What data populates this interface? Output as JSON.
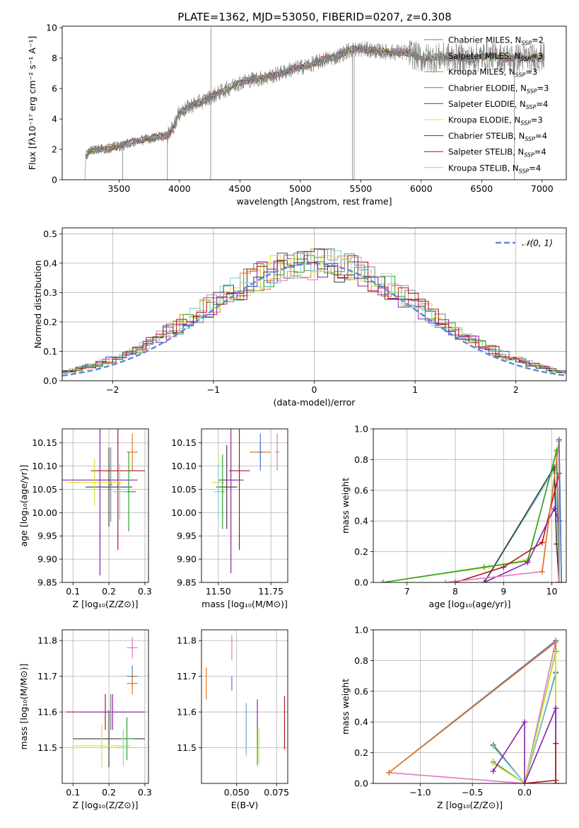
{
  "figure": {
    "title": "PLATE=1362, MJD=53050, FIBERID=0207, z=0.308"
  },
  "colors": {
    "chabrier_miles": "#7f7f7f",
    "salpeter_miles": "#e377c2",
    "kroupa_miles": "#e6771c",
    "chabrier_elodie": "#2ca02c",
    "salpeter_elodie": "#8b1fa9",
    "kroupa_elodie": "#d6e33a",
    "chabrier_stelib": "#3a3a3a",
    "salpeter_stelib": "#b0141c",
    "kroupa_stelib": "#7fd3d9",
    "normal": "#5b8bd6",
    "blue": "#4a7bd0",
    "orange": "#e6771c",
    "grid": "#b0b0b0"
  },
  "legend_spectrum": [
    {
      "label": "Chabrier MILES, N",
      "sub": "SSP",
      "suffix": "=2",
      "color": "#7f7f7f"
    },
    {
      "label": "Salpeter MILES, N",
      "sub": "SSP",
      "suffix": "=3",
      "color": "#e377c2"
    },
    {
      "label": "Kroupa MILES, N",
      "sub": "SSP",
      "suffix": "=3",
      "color": "#e6771c"
    },
    {
      "label": "Chabrier ELODIE, N",
      "sub": "SSP",
      "suffix": "=3",
      "color": "#2ca02c"
    },
    {
      "label": "Salpeter ELODIE, N",
      "sub": "SSP",
      "suffix": "=4",
      "color": "#8b1fa9"
    },
    {
      "label": "Kroupa ELODIE, N",
      "sub": "SSP",
      "suffix": "=3",
      "color": "#d6e33a"
    },
    {
      "label": "Chabrier STELIB, N",
      "sub": "SSP",
      "suffix": "=4",
      "color": "#3a3a3a"
    },
    {
      "label": "Salpeter STELIB, N",
      "sub": "SSP",
      "suffix": "=4",
      "color": "#b0141c"
    },
    {
      "label": "Kroupa STELIB, N",
      "sub": "SSP",
      "suffix": "=4",
      "color": "#7fd3d9"
    }
  ],
  "chart_data": [
    {
      "id": "spectrum",
      "type": "line",
      "xlabel": "wavelength [Angstrom, rest frame]",
      "ylabel": "Flux [fλ10⁻¹⁷ erg cm⁻² s⁻¹ A⁻¹]",
      "xlim": [
        3030,
        7200
      ],
      "ylim": [
        0,
        10.1
      ],
      "xticks": [
        3500,
        4000,
        4500,
        5000,
        5500,
        6000,
        6500,
        7000
      ],
      "yticks": [
        0,
        2,
        4,
        6,
        8,
        10
      ],
      "grid": false,
      "legend": "right",
      "data_range": [
        3220,
        7020
      ],
      "continuum_points": [
        [
          3220,
          0.0
        ],
        [
          3225,
          1.6
        ],
        [
          3260,
          1.9
        ],
        [
          3300,
          2.0
        ],
        [
          3350,
          2.0
        ],
        [
          3400,
          2.05
        ],
        [
          3450,
          2.15
        ],
        [
          3500,
          2.2
        ],
        [
          3550,
          2.3
        ],
        [
          3600,
          2.45
        ],
        [
          3650,
          2.55
        ],
        [
          3700,
          2.65
        ],
        [
          3750,
          2.7
        ],
        [
          3800,
          2.8
        ],
        [
          3850,
          2.85
        ],
        [
          3900,
          2.9
        ],
        [
          3950,
          3.5
        ],
        [
          4000,
          4.4
        ],
        [
          4100,
          4.9
        ],
        [
          4200,
          5.2
        ],
        [
          4300,
          5.6
        ],
        [
          4400,
          6.0
        ],
        [
          4500,
          6.4
        ],
        [
          4600,
          6.6
        ],
        [
          4700,
          6.7
        ],
        [
          4800,
          6.9
        ],
        [
          4900,
          7.2
        ],
        [
          5000,
          7.4
        ],
        [
          5100,
          7.6
        ],
        [
          5200,
          7.9
        ],
        [
          5300,
          8.1
        ],
        [
          5400,
          8.5
        ],
        [
          5500,
          8.6
        ],
        [
          5600,
          8.5
        ],
        [
          5700,
          8.4
        ],
        [
          5800,
          8.4
        ],
        [
          5900,
          8.35
        ],
        [
          6000,
          8.0
        ],
        [
          6100,
          8.0
        ],
        [
          6200,
          8.1
        ],
        [
          6300,
          8.0
        ],
        [
          6400,
          7.95
        ],
        [
          6500,
          8.1
        ],
        [
          6600,
          8.1
        ],
        [
          6700,
          8.0
        ],
        [
          6800,
          8.0
        ],
        [
          6900,
          8.0
        ],
        [
          7000,
          8.1
        ],
        [
          7020,
          8.1
        ]
      ],
      "spikes": [
        {
          "x": 4260,
          "y": 10.0
        },
        {
          "x": 4258,
          "y": 0.0
        },
        {
          "x": 3530,
          "y": 0.0
        },
        {
          "x": 3900,
          "y": 0.0
        },
        {
          "x": 5430,
          "y": 0.0
        },
        {
          "x": 5445,
          "y": 0.0
        },
        {
          "x": 6770,
          "y": 0.0
        }
      ]
    },
    {
      "id": "residuals",
      "type": "histogram",
      "xlabel": "(data-model)/error",
      "ylabel": "Normed distribution",
      "xlim": [
        -2.5,
        2.5
      ],
      "ylim": [
        0,
        0.52
      ],
      "xticks": [
        -2,
        -1,
        0,
        1,
        2
      ],
      "yticks": [
        0,
        0.1,
        0.2,
        0.3,
        0.4,
        0.5
      ],
      "grid": true,
      "legend": "top-right",
      "normal_label": "𝒩(0, 1)",
      "bin_width": 0.1
    },
    {
      "id": "age-vs-z",
      "type": "scatter",
      "xlabel": "Z [log₁₀(Z/Z⊙)]",
      "ylabel": "age  [log₁₀(age/yr)]",
      "xlim": [
        0.07,
        0.31
      ],
      "ylim": [
        9.85,
        10.18
      ],
      "xticks": [
        0.1,
        0.2,
        0.3
      ],
      "yticks": [
        9.85,
        9.9,
        9.95,
        10.0,
        10.05,
        10.1,
        10.15
      ],
      "grid": true,
      "points": [
        {
          "x": 0.265,
          "y": 10.13,
          "xerr": 0.015,
          "yerr": 0.04,
          "color": "#e6771c"
        },
        {
          "x": 0.175,
          "y": 10.07,
          "xerr": 0.105,
          "yerr": 0.205,
          "color": "#8b1fa9"
        },
        {
          "x": 0.225,
          "y": 10.09,
          "xerr": 0.075,
          "yerr": 0.17,
          "color": "#b0141c"
        },
        {
          "x": 0.2,
          "y": 10.055,
          "xerr": 0.065,
          "yerr": 0.085,
          "color": "#3a3a3a"
        },
        {
          "x": 0.16,
          "y": 10.065,
          "xerr": 0.075,
          "yerr": 0.05,
          "color": "#d6e33a"
        },
        {
          "x": 0.255,
          "y": 10.045,
          "xerr": 0.02,
          "yerr": 0.085,
          "color": "#2ca02c"
        },
        {
          "x": 0.23,
          "y": 10.045,
          "xerr": 0.02,
          "yerr": 0.06,
          "color": "#7fd3d9"
        },
        {
          "x": 0.205,
          "y": 10.06,
          "xerr": 0.005,
          "yerr": 0.08,
          "color": "#7f7f7f"
        }
      ]
    },
    {
      "id": "age-vs-mass",
      "type": "scatter",
      "xlabel": "mass [log₁₀(M/M⊙)]",
      "ylabel": "",
      "xlim": [
        11.42,
        11.83
      ],
      "ylim": [
        9.85,
        10.18
      ],
      "xticks": [
        11.5,
        11.75
      ],
      "yticks": [
        9.85,
        9.9,
        9.95,
        10.0,
        10.05,
        10.1,
        10.15
      ],
      "grid": true,
      "points": [
        {
          "x": 11.7,
          "y": 10.13,
          "xerr": 0.05,
          "yerr": 0.02,
          "color": "#e6771c"
        },
        {
          "x": 11.7,
          "y": 10.13,
          "xerr": 0.01,
          "yerr": 0.04,
          "color": "#4a7bd0"
        },
        {
          "x": 11.78,
          "y": 10.13,
          "xerr": 0.01,
          "yerr": 0.04,
          "color": "#e377c2"
        },
        {
          "x": 11.56,
          "y": 10.07,
          "xerr": 0.06,
          "yerr": 0.2,
          "color": "#8b1fa9"
        },
        {
          "x": 11.6,
          "y": 10.09,
          "xerr": 0.05,
          "yerr": 0.17,
          "color": "#b0141c"
        },
        {
          "x": 11.54,
          "y": 10.055,
          "xerr": 0.05,
          "yerr": 0.09,
          "color": "#3a3a3a"
        },
        {
          "x": 11.5,
          "y": 10.065,
          "xerr": 0.03,
          "yerr": 0.05,
          "color": "#d6e33a"
        },
        {
          "x": 11.52,
          "y": 10.045,
          "xerr": 0.01,
          "yerr": 0.08,
          "color": "#2ca02c"
        },
        {
          "x": 11.5,
          "y": 10.045,
          "xerr": 0.02,
          "yerr": 0.06,
          "color": "#7fd3d9"
        }
      ]
    },
    {
      "id": "weight-vs-age",
      "type": "line",
      "xlabel": "age  [log₁₀(age/yr)]",
      "ylabel": "mass weight",
      "xlim": [
        6.3,
        10.3
      ],
      "ylim": [
        0,
        1.0
      ],
      "xticks": [
        7,
        8,
        9,
        10
      ],
      "yticks": [
        0,
        0.2,
        0.4,
        0.6,
        0.8,
        1.0
      ],
      "grid": true,
      "series": [
        {
          "color": "#d6e33a",
          "x": [
            6.5,
            8.7,
            9.5,
            10.1,
            10.15
          ],
          "y": [
            0.0,
            0.1,
            0.15,
            0.85,
            0.0
          ]
        },
        {
          "color": "#7fd3d9",
          "x": [
            8.6,
            10.05,
            10.15,
            10.15
          ],
          "y": [
            0.0,
            0.73,
            0.25,
            0.0
          ]
        },
        {
          "color": "#3a3a3a",
          "x": [
            8.6,
            10.05,
            10.1,
            10.15
          ],
          "y": [
            0.0,
            0.75,
            0.25,
            0.0
          ]
        },
        {
          "color": "#2ca02c",
          "x": [
            6.5,
            8.6,
            9.5,
            10.1,
            10.15
          ],
          "y": [
            0.0,
            0.1,
            0.14,
            0.86,
            0.0
          ]
        },
        {
          "color": "#b0141c",
          "x": [
            8.0,
            9.0,
            9.8,
            10.15,
            10.15
          ],
          "y": [
            0.0,
            0.1,
            0.26,
            0.71,
            0.0
          ]
        },
        {
          "color": "#8b1fa9",
          "x": [
            8.6,
            9.5,
            10.05,
            10.15
          ],
          "y": [
            0.0,
            0.13,
            0.48,
            0.4
          ]
        },
        {
          "color": "#e377c2",
          "x": [
            7.8,
            9.8,
            10.15,
            10.15
          ],
          "y": [
            0.0,
            0.07,
            0.93,
            0.0
          ]
        },
        {
          "color": "#e6771c",
          "x": [
            9.8,
            10.15,
            10.2
          ],
          "y": [
            0.07,
            0.92,
            0.0
          ]
        },
        {
          "color": "#4a7bd0",
          "x": [
            10.15,
            10.2
          ],
          "y": [
            0.93,
            0.0
          ]
        }
      ]
    },
    {
      "id": "mass-vs-z",
      "type": "scatter",
      "xlabel": "Z [log₁₀(Z/Z⊙)]",
      "ylabel": "mass [log₁₀(M/M⊙)]",
      "xlim": [
        0.07,
        0.31
      ],
      "ylim": [
        11.4,
        11.83
      ],
      "xticks": [
        0.1,
        0.2,
        0.3
      ],
      "yticks": [
        11.5,
        11.6,
        11.7,
        11.8
      ],
      "grid": true,
      "points": [
        {
          "x": 0.265,
          "y": 11.78,
          "xerr": 0.015,
          "yerr": 0.03,
          "color": "#e377c2"
        },
        {
          "x": 0.265,
          "y": 11.7,
          "xerr": 0.015,
          "yerr": 0.03,
          "color": "#4a7bd0"
        },
        {
          "x": 0.265,
          "y": 11.68,
          "xerr": 0.015,
          "yerr": 0.03,
          "color": "#e6771c"
        },
        {
          "x": 0.19,
          "y": 11.6,
          "xerr": 0.11,
          "yerr": 0.05,
          "color": "#b0141c"
        },
        {
          "x": 0.21,
          "y": 11.6,
          "xerr": 0.09,
          "yerr": 0.05,
          "color": "#8b1fa9"
        },
        {
          "x": 0.2,
          "y": 11.525,
          "xerr": 0.1,
          "yerr": 0.08,
          "color": "#3a3a3a"
        },
        {
          "x": 0.18,
          "y": 11.505,
          "xerr": 0.08,
          "yerr": 0.06,
          "color": "#d6e33a"
        },
        {
          "x": 0.25,
          "y": 11.525,
          "xerr": 0.02,
          "yerr": 0.06,
          "color": "#2ca02c"
        },
        {
          "x": 0.24,
          "y": 11.5,
          "xerr": 0.02,
          "yerr": 0.05,
          "color": "#7fd3d9"
        },
        {
          "x": 0.205,
          "y": 11.6,
          "xerr": 0.005,
          "yerr": 0.05,
          "color": "#7f7f7f"
        }
      ]
    },
    {
      "id": "mass-vs-ebv",
      "type": "scatter",
      "xlabel": "E(B-V)",
      "ylabel": "",
      "xlim": [
        0.028,
        0.082
      ],
      "ylim": [
        11.4,
        11.83
      ],
      "xticks": [
        0.05,
        0.075
      ],
      "yticks": [
        11.5,
        11.6,
        11.7,
        11.8
      ],
      "grid": true,
      "points": [
        {
          "x": 0.031,
          "y": 11.68,
          "xerr": 0,
          "yerr": 0.045,
          "color": "#e6771c"
        },
        {
          "x": 0.047,
          "y": 11.78,
          "xerr": 0,
          "yerr": 0.035,
          "color": "#e377c2"
        },
        {
          "x": 0.047,
          "y": 11.68,
          "xerr": 0,
          "yerr": 0.02,
          "color": "#4a7bd0"
        },
        {
          "x": 0.056,
          "y": 11.555,
          "xerr": 0,
          "yerr": 0.07,
          "color": "#3a3a3a"
        },
        {
          "x": 0.056,
          "y": 11.55,
          "xerr": 0,
          "yerr": 0.075,
          "color": "#7fd3d9"
        },
        {
          "x": 0.063,
          "y": 11.575,
          "xerr": 0,
          "yerr": 0.06,
          "color": "#8b1fa9"
        },
        {
          "x": 0.063,
          "y": 11.5,
          "xerr": 0,
          "yerr": 0.05,
          "color": "#2ca02c"
        },
        {
          "x": 0.064,
          "y": 11.505,
          "xerr": 0,
          "yerr": 0.05,
          "color": "#d6e33a"
        },
        {
          "x": 0.08,
          "y": 11.57,
          "xerr": 0,
          "yerr": 0.075,
          "color": "#b0141c"
        }
      ]
    },
    {
      "id": "weight-vs-z",
      "type": "line",
      "xlabel": "Z [log₁₀(Z/Z⊙)]",
      "ylabel": "mass weight",
      "xlim": [
        -1.45,
        0.4
      ],
      "ylim": [
        0,
        1.0
      ],
      "xticks": [
        -1.0,
        -0.5,
        0.0
      ],
      "yticks": [
        0,
        0.2,
        0.4,
        0.6,
        0.8,
        1.0
      ],
      "grid": true,
      "series": [
        {
          "color": "#e377c2",
          "x": [
            -1.3,
            0.0,
            0.3,
            0.3
          ],
          "y": [
            0.07,
            0.0,
            0.93,
            0.0
          ]
        },
        {
          "color": "#4a7bd0",
          "x": [
            -1.3,
            0.3,
            0.3
          ],
          "y": [
            0.07,
            0.93,
            0.0
          ]
        },
        {
          "color": "#e6771c",
          "x": [
            -1.3,
            0.3,
            0.3
          ],
          "y": [
            0.07,
            0.92,
            0.0
          ]
        },
        {
          "color": "#3a3a3a",
          "x": [
            -0.3,
            0.0,
            0.3,
            0.3
          ],
          "y": [
            0.25,
            0.0,
            0.72,
            0.0
          ]
        },
        {
          "color": "#7fd3d9",
          "x": [
            -0.3,
            0.0,
            0.3,
            0.3
          ],
          "y": [
            0.24,
            0.0,
            0.73,
            0.0
          ]
        },
        {
          "color": "#2ca02c",
          "x": [
            -0.3,
            0.0,
            0.3,
            0.3
          ],
          "y": [
            0.14,
            0.0,
            0.86,
            0.0
          ]
        },
        {
          "color": "#d6e33a",
          "x": [
            -0.3,
            0.0,
            0.3,
            0.3
          ],
          "y": [
            0.13,
            0.0,
            0.85,
            0.0
          ]
        },
        {
          "color": "#8b1fa9",
          "x": [
            -0.3,
            0.0,
            0.0,
            0.3,
            0.3
          ],
          "y": [
            0.08,
            0.4,
            0.0,
            0.49,
            0.0
          ]
        },
        {
          "color": "#b0141c",
          "x": [
            0.0,
            0.3,
            0.3
          ],
          "y": [
            0.0,
            0.02,
            0.26
          ]
        }
      ]
    }
  ]
}
